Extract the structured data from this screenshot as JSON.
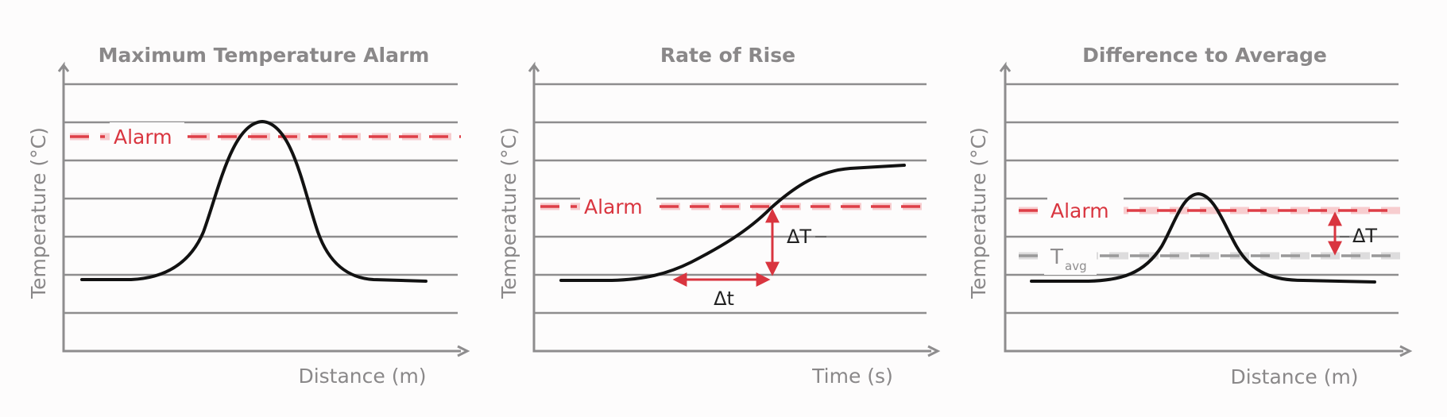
{
  "panels": [
    {
      "title": "Maximum Temperature Alarm",
      "ylabel": "Temperature (°C)",
      "xlabel": "Distance (m)",
      "alarm_label": "Alarm"
    },
    {
      "title": "Rate of Rise",
      "ylabel": "Temperature (°C)",
      "xlabel": "Time (s)",
      "alarm_label": "Alarm",
      "delta_T_label": "ΔT",
      "delta_t_label": "Δt"
    },
    {
      "title": "Difference to Average",
      "ylabel": "Temperature (°C)",
      "xlabel": "Distance (m)",
      "alarm_label": "Alarm",
      "delta_T_label": "ΔT",
      "tavg_label": "T",
      "tavg_subscript": "avg"
    }
  ],
  "colors": {
    "alarm": "#de3e47",
    "curve": "#121212",
    "axis": "#8e8d8e",
    "average": "#9a999a",
    "text": "#8a8889"
  }
}
